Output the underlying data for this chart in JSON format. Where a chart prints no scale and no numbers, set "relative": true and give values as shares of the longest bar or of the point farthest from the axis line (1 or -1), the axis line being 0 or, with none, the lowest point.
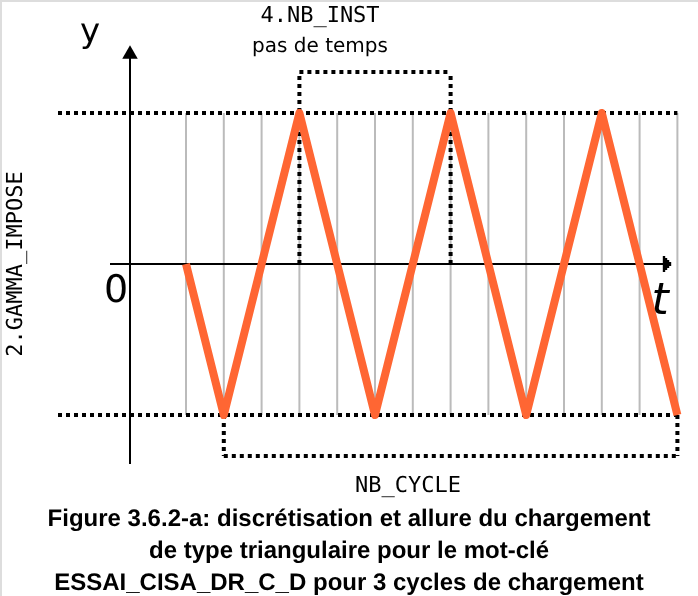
{
  "chart_data": {
    "type": "line",
    "relative": true,
    "title": "Figure 3.6.2-a: discrétisation et allure du chargement\nde type triangulaire pour le mot-clé\nESSAI_CISA_DR_C_D pour 3 cycles de chargement",
    "xlabel": "t",
    "ylabel": "y",
    "categories": [
      null,
      null,
      null,
      null,
      null,
      null,
      null,
      null,
      null,
      null,
      null,
      null,
      null,
      null
    ],
    "values": [
      0,
      -1,
      0,
      1,
      0,
      -1,
      0,
      1,
      0,
      -1,
      0,
      1,
      0,
      -1
    ],
    "color": "#ff6633",
    "grid": "x",
    "line_style": "solid",
    "ref_lines": [
      {
        "axis": "y",
        "value": 1,
        "line_style": "dotted",
        "color": "#000000"
      },
      {
        "axis": "y",
        "value": -1,
        "line_style": "dotted",
        "color": "#000000"
      }
    ],
    "annotations": [
      "4.NB_INST",
      "pas de temps",
      "2.GAMMA_IMPOSE",
      "NB_CYCLE",
      "0"
    ]
  }
}
